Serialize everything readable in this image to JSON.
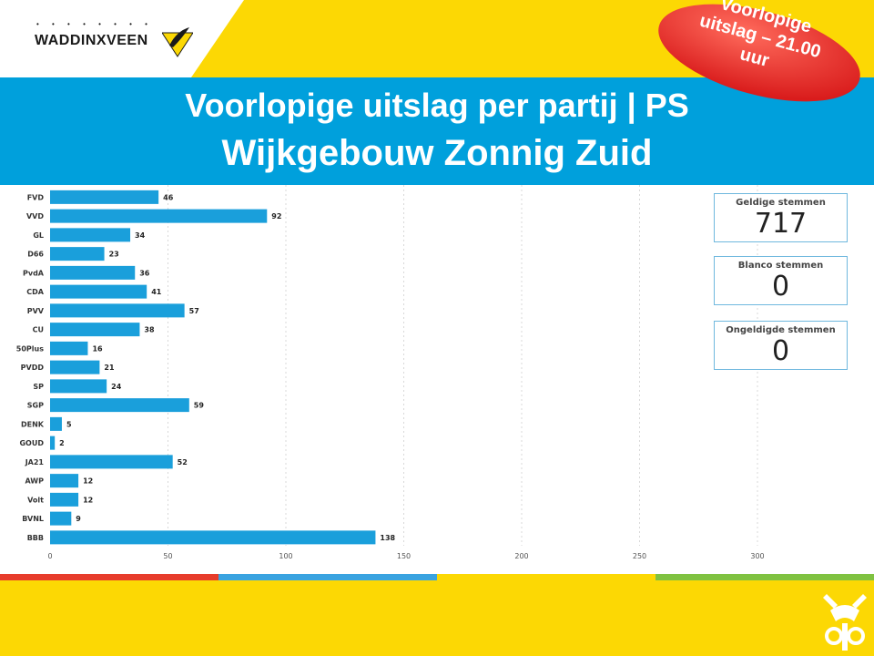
{
  "header": {
    "logo_text": "WADDINXVEEN",
    "title_line1": "Voorlopige uitslag per partij | PS",
    "title_line2": "Wijkgebouw Zonnig Zuid",
    "badge": "Voorlopige uitslag – 21.00 uur"
  },
  "kpis": [
    {
      "label": "Geldige stemmen",
      "value": "717"
    },
    {
      "label": "Blanco stemmen",
      "value": "0"
    },
    {
      "label": "Ongeldigde stemmen",
      "value": "0"
    }
  ],
  "colors": {
    "bar": "#1a9fdb",
    "background": "#fcd804",
    "banner": "#00a0dc",
    "badge": "#e5322d",
    "stripe_red": "#e73c2b",
    "stripe_blue": "#3aa3e0",
    "stripe_yellow": "#fcd804",
    "stripe_green": "#7fc241"
  },
  "chart_data": {
    "type": "bar",
    "orientation": "horizontal",
    "categories": [
      "FVD",
      "VVD",
      "GL",
      "D66",
      "PvdA",
      "CDA",
      "PVV",
      "CU",
      "50Plus",
      "PVDD",
      "SP",
      "SGP",
      "DENK",
      "GOUD",
      "JA21",
      "AWP",
      "Volt",
      "BVNL",
      "BBB"
    ],
    "values": [
      46,
      92,
      34,
      23,
      36,
      41,
      57,
      38,
      16,
      21,
      24,
      59,
      5,
      2,
      52,
      12,
      12,
      9,
      138
    ],
    "xlim": [
      0,
      300
    ],
    "xticks": [
      0,
      50,
      100,
      150,
      200,
      250,
      300
    ],
    "grid": true,
    "title": "",
    "xlabel": "",
    "ylabel": ""
  }
}
